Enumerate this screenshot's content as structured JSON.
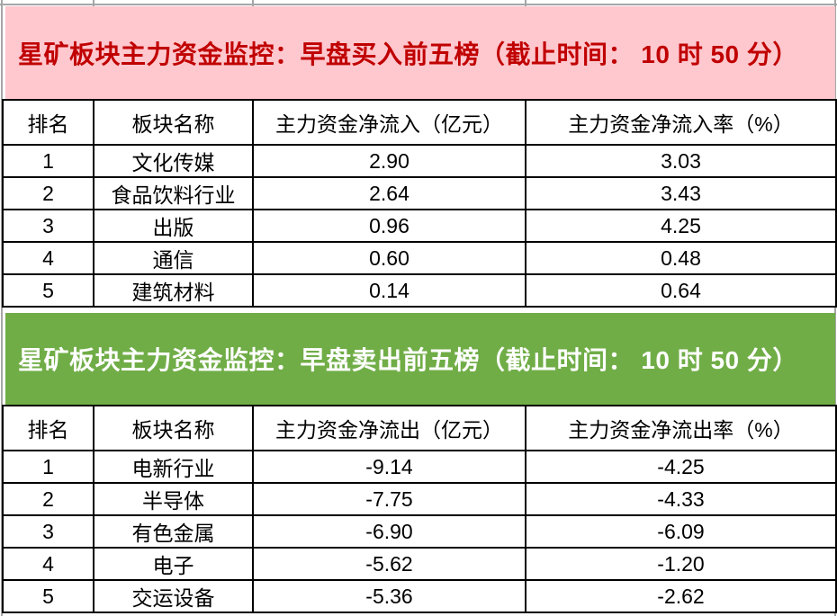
{
  "colors": {
    "buy_banner_bg": "#ffc7ce",
    "buy_banner_text": "#c00000",
    "sell_banner_bg": "#70ad47",
    "sell_banner_text": "#ffffff",
    "table_border": "#000000",
    "gridline": "#a6a6a6"
  },
  "sections": [
    {
      "id": "buy",
      "title": "星矿板块主力资金监控：早盘买入前五榜（截止时间： 10 时 50 分）",
      "table": {
        "headers": [
          "排名",
          "板块名称",
          "主力资金净流入（亿元）",
          "主力资金净流入率（%）"
        ],
        "rows": [
          [
            "1",
            "文化传媒",
            "2.90",
            "3.03"
          ],
          [
            "2",
            "食品饮料行业",
            "2.64",
            "3.43"
          ],
          [
            "3",
            "出版",
            "0.96",
            "4.25"
          ],
          [
            "4",
            "通信",
            "0.60",
            "0.48"
          ],
          [
            "5",
            "建筑材料",
            "0.14",
            "0.64"
          ]
        ]
      }
    },
    {
      "id": "sell",
      "title": "星矿板块主力资金监控：早盘卖出前五榜（截止时间： 10 时 50 分）",
      "table": {
        "headers": [
          "排名",
          "板块名称",
          "主力资金净流出（亿元）",
          "主力资金净流出率（%）"
        ],
        "rows": [
          [
            "1",
            "电新行业",
            "-9.14",
            "-4.25"
          ],
          [
            "2",
            "半导体",
            "-7.75",
            "-4.33"
          ],
          [
            "3",
            "有色金属",
            "-6.90",
            "-6.09"
          ],
          [
            "4",
            "电子",
            "-5.62",
            "-1.20"
          ],
          [
            "5",
            "交运设备",
            "-5.36",
            "-2.62"
          ]
        ]
      }
    }
  ]
}
